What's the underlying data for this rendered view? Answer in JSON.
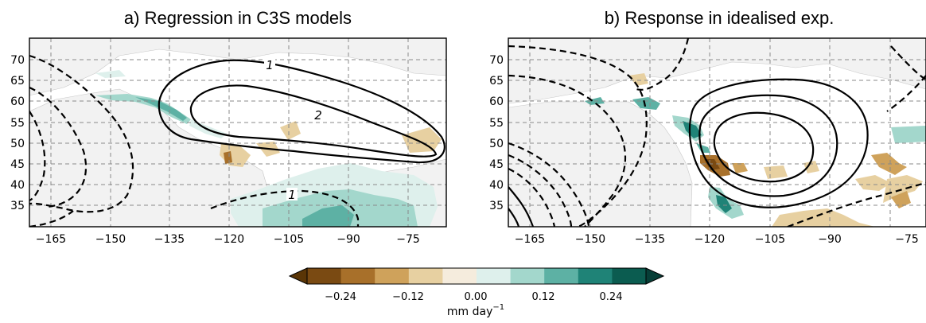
{
  "panels": [
    {
      "id": "a",
      "title": "a) Regression in C3S models",
      "x_ticks": [
        "−165",
        "−150",
        "−135",
        "−120",
        "−105",
        "−90",
        "−75"
      ],
      "y_ticks": [
        "70",
        "65",
        "60",
        "55",
        "50",
        "45",
        "40",
        "35"
      ],
      "contour_labels": [
        "1",
        "2",
        "1"
      ]
    },
    {
      "id": "b",
      "title": "b) Response in idealised exp.",
      "x_ticks": [
        "−165",
        "−150",
        "−135",
        "−120",
        "−105",
        "−90",
        "−75"
      ],
      "y_ticks": [
        "70",
        "65",
        "60",
        "55",
        "50",
        "45",
        "40",
        "35"
      ],
      "contour_labels": []
    }
  ],
  "colorbar": {
    "ticks": [
      "−0.24",
      "−0.12",
      "0.00",
      "0.12",
      "0.24"
    ],
    "unit": "mm day",
    "unit_exponent": "−1",
    "colors": [
      "#5a3506",
      "#7a4a12",
      "#a8702a",
      "#cfa25b",
      "#e7d0a1",
      "#f5ecdd",
      "#def0ec",
      "#a3d7cc",
      "#5db1a4",
      "#1f8377",
      "#0b5c50",
      "#073e37"
    ]
  },
  "map": {
    "land_color": "#f2f2f2",
    "grid_color": "#8a8a8a",
    "contour_color": "#000000"
  }
}
